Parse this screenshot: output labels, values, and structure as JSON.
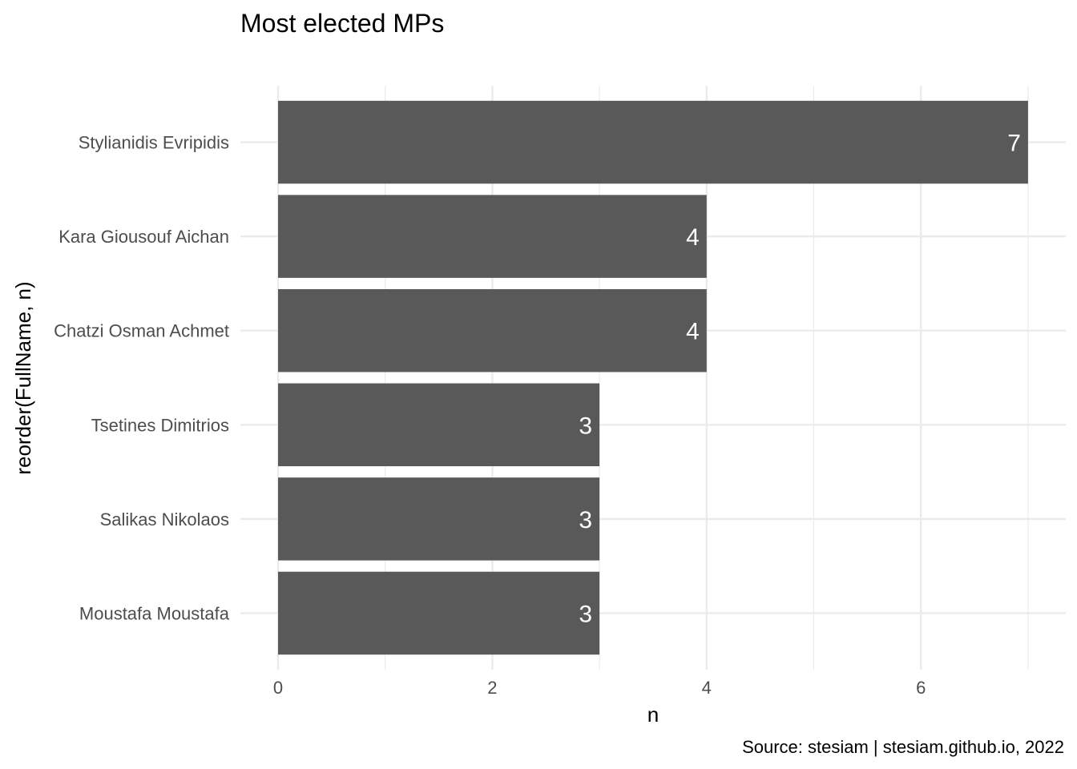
{
  "chart_data": {
    "type": "bar",
    "orientation": "horizontal",
    "title": "Most elected MPs",
    "xlabel": "n",
    "ylabel": "reorder(FullName, n)",
    "caption": "Source: stesiam | stesiam.github.io, 2022",
    "categories": [
      "Stylianidis Evripidis",
      "Kara Giousouf Aichan",
      "Chatzi Osman Achmet",
      "Tsetines Dimitrios",
      "Salikas Nikolaos",
      "Moustafa Moustafa"
    ],
    "values": [
      7,
      4,
      4,
      3,
      3,
      3
    ],
    "data_labels": [
      "7",
      "4",
      "4",
      "3",
      "3",
      "3"
    ],
    "xticks": [
      0,
      2,
      4,
      6
    ],
    "xtick_labels": [
      "0",
      "2",
      "4",
      "6"
    ],
    "xlim": [
      0,
      7.35
    ],
    "grid": true,
    "legend": "none",
    "colors": {
      "bar": "#595959",
      "grid": "#ebebeb",
      "label": "#ffffff",
      "tick_text": "#4d4d4d",
      "text": "#000000"
    }
  }
}
